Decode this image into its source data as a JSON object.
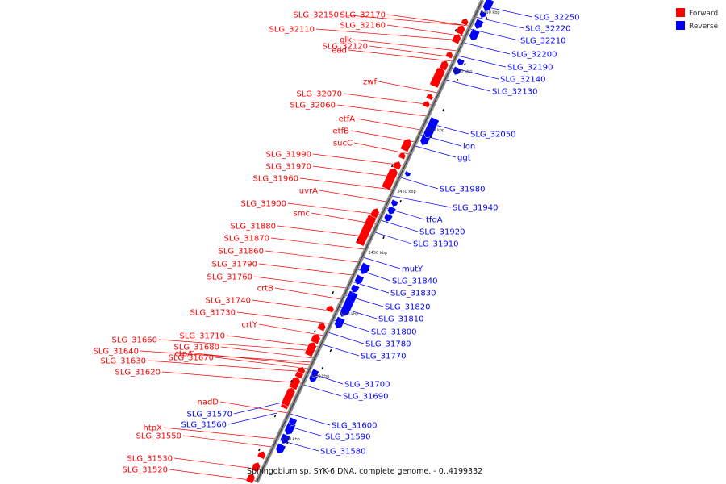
{
  "legend": [
    {
      "label": "Forward",
      "color": "#ff0000"
    },
    {
      "label": "Reverse",
      "color": "#0000ff"
    }
  ],
  "caption": "Sphingobium sp. SYK-6 DNA, complete genome. - 0..4199332",
  "ticks": [
    "3420 kbp",
    "3430 kbp",
    "3440 kbp",
    "3450 kbp",
    "3460 kbp",
    "3470 kbp",
    "3480 kbp",
    "3490 kbp"
  ],
  "forward_labels": [
    "SLG_32150",
    "SLG_32170",
    "SLG_32160",
    "SLG_32110",
    "glk",
    "SLG_32120",
    "edd",
    "zwf",
    "SLG_32070",
    "SLG_32060",
    "etfA",
    "etfB",
    "sucC",
    "SLG_31990",
    "SLG_31970",
    "SLG_31960",
    "uvrA",
    "SLG_31900",
    "smc",
    "SLG_31880",
    "SLG_31870",
    "SLG_31860",
    "SLG_31790",
    "SLG_31760",
    "crtB",
    "SLG_31740",
    "SLG_31730",
    "crtY",
    "SLG_31710",
    "SLG_31660",
    "SLG_31680",
    "SLG_31640",
    "ctpA",
    "SLG_31670",
    "SLG_31630",
    "SLG_31620",
    "nadD",
    "htpX",
    "SLG_31550",
    "SLG_31530",
    "SLG_31520"
  ],
  "reverse_labels": [
    "SLG_32250",
    "SLG_32220",
    "SLG_32210",
    "SLG_32200",
    "SLG_32190",
    "SLG_32140",
    "SLG_32130",
    "SLG_32050",
    "lon",
    "ggt",
    "SLG_31980",
    "SLG_31940",
    "tfdA",
    "SLG_31920",
    "SLG_31910",
    "mutY",
    "SLG_31840",
    "SLG_31830",
    "SLG_31820",
    "SLG_31810",
    "SLG_31800",
    "SLG_31780",
    "SLG_31770",
    "SLG_31700",
    "SLG_31690",
    "SLG_31600",
    "SLG_31590",
    "SLG_31580",
    "SLG_31570",
    "SLG_31560"
  ]
}
